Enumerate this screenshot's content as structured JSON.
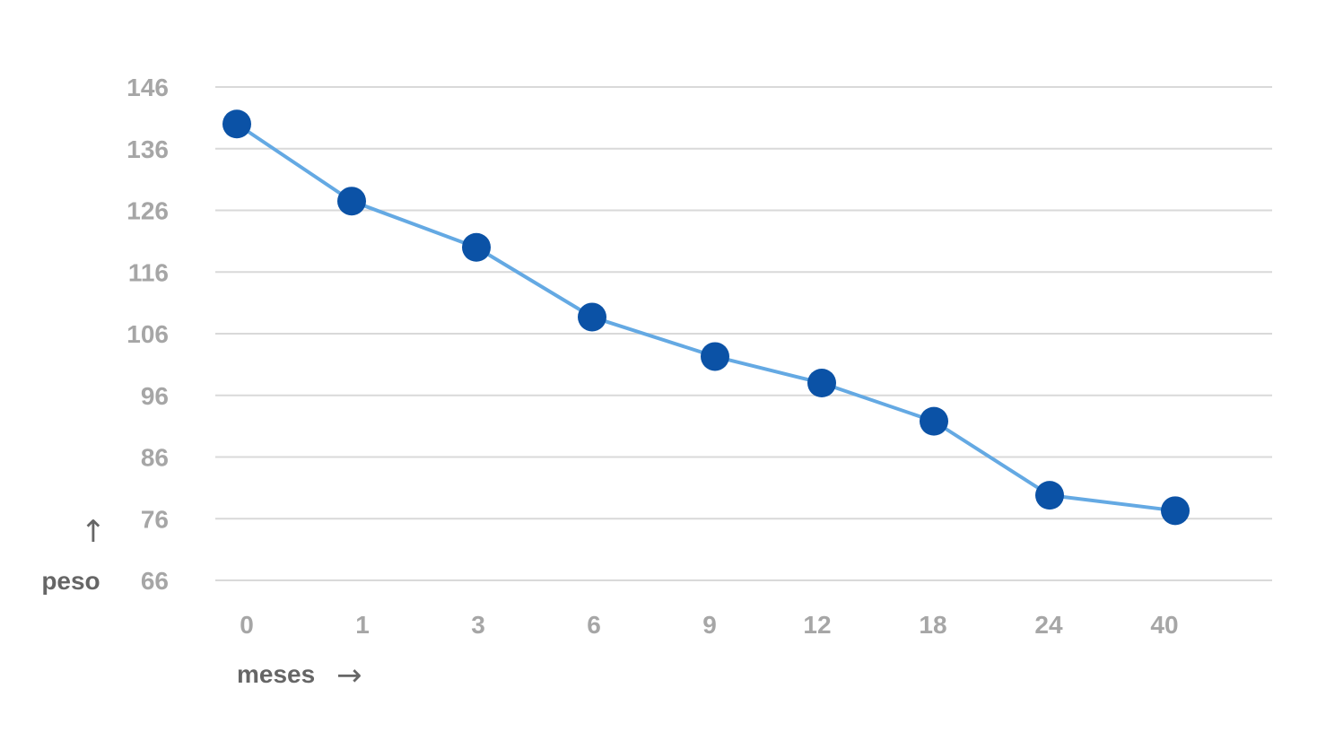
{
  "chart_data": {
    "type": "line",
    "categories": [
      "0",
      "1",
      "3",
      "6",
      "9",
      "12",
      "18",
      "24",
      "40"
    ],
    "series": [
      {
        "values": [
          140,
          127.5,
          120,
          108.7,
          102.3,
          98,
          91.8,
          79.8,
          77.3
        ]
      }
    ],
    "y_ticks": [
      "146",
      "136",
      "126",
      "116",
      "106",
      "96",
      "86",
      "76",
      "66"
    ],
    "ylim": [
      66,
      146
    ],
    "xlabel": "meses",
    "ylabel": "peso",
    "xlabel_arrow": "→",
    "ylabel_arrow": "↑",
    "grid": true,
    "colors": {
      "line": "#64a9e3",
      "marker": "#0b52a6",
      "grid": "#d9d9d9",
      "tick_text": "#a6a6a6",
      "label_text": "#666666"
    }
  }
}
